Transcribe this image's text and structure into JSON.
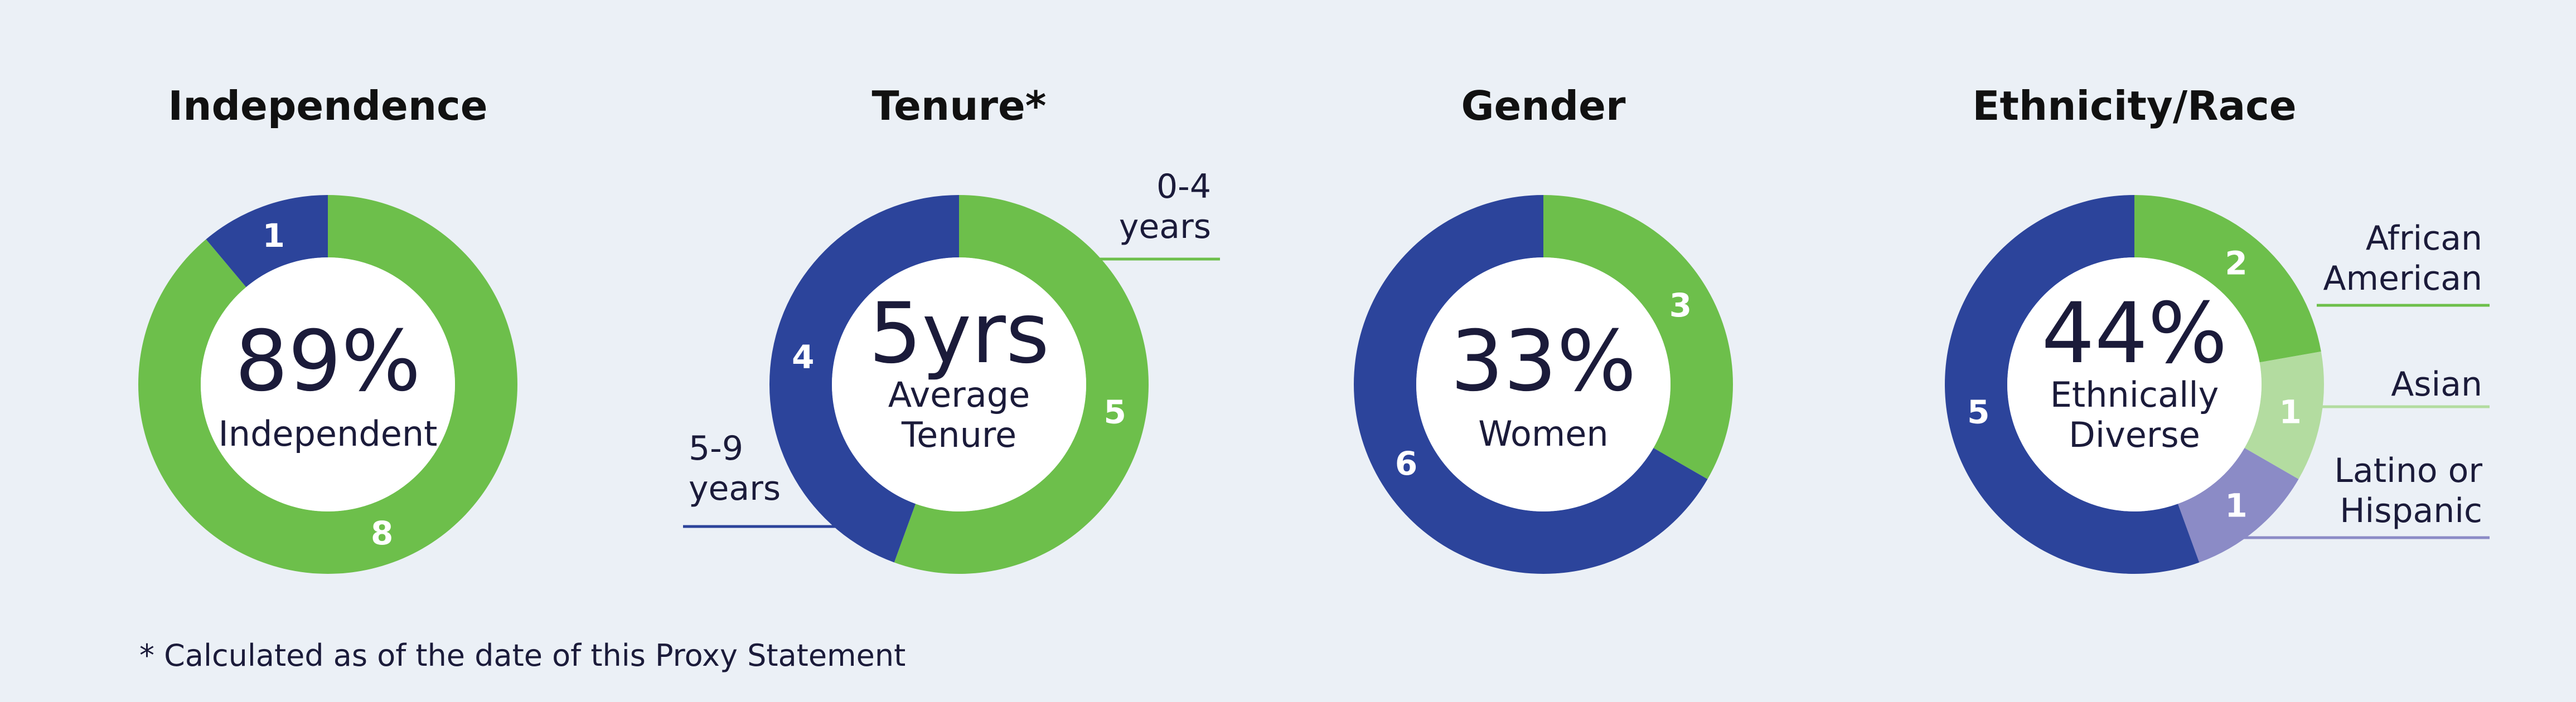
{
  "footnote": "* Calculated as of the date of this Proxy Statement",
  "colors": {
    "green": "#6dbf4b",
    "blue": "#2c449b",
    "light_green": "#b3dca0",
    "lavender": "#8b8bc6",
    "background": "#ebf0f6"
  },
  "chart_data": [
    {
      "type": "pie",
      "title": "Independence",
      "center_value": "89%",
      "center_label": [
        "Independent"
      ],
      "slices": [
        {
          "name": "",
          "value": 8,
          "color": "#6dbf4b"
        },
        {
          "name": "",
          "value": 1,
          "color": "#2c449b"
        }
      ]
    },
    {
      "type": "pie",
      "title": "Tenure*",
      "center_value": "5yrs",
      "center_label": [
        "Average",
        "Tenure"
      ],
      "slices": [
        {
          "name": "0-4 years",
          "value": 5,
          "color": "#6dbf4b"
        },
        {
          "name": "5-9 years",
          "value": 4,
          "color": "#2c449b"
        }
      ]
    },
    {
      "type": "pie",
      "title": "Gender",
      "center_value": "33%",
      "center_label": [
        "Women"
      ],
      "slices": [
        {
          "name": "",
          "value": 3,
          "color": "#6dbf4b"
        },
        {
          "name": "",
          "value": 6,
          "color": "#2c449b"
        }
      ]
    },
    {
      "type": "pie",
      "title": "Ethnicity/Race",
      "center_value": "44%",
      "center_label": [
        "Ethnically",
        "Diverse"
      ],
      "slices": [
        {
          "name": "African American",
          "value": 2,
          "color": "#6dbf4b"
        },
        {
          "name": "Asian",
          "value": 1,
          "color": "#b3dca0"
        },
        {
          "name": "Latino or Hispanic",
          "value": 1,
          "color": "#8b8bc6"
        },
        {
          "name": "",
          "value": 5,
          "color": "#2c449b"
        }
      ]
    }
  ],
  "callouts": [
    {
      "chart": 1,
      "slice": 0,
      "lines": [
        "0-4",
        "years"
      ]
    },
    {
      "chart": 1,
      "slice": 1,
      "lines": [
        "5-9",
        "years"
      ]
    },
    {
      "chart": 3,
      "slice": 0,
      "lines": [
        "African",
        "American"
      ]
    },
    {
      "chart": 3,
      "slice": 1,
      "lines": [
        "Asian"
      ]
    },
    {
      "chart": 3,
      "slice": 2,
      "lines": [
        "Latino or",
        "Hispanic"
      ]
    }
  ]
}
